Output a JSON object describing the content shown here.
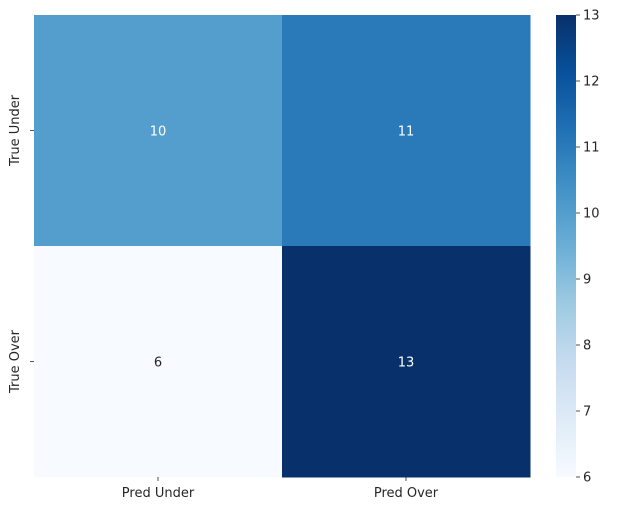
{
  "chart_data": {
    "type": "heatmap",
    "title": "",
    "xlabel": "",
    "ylabel": "",
    "x_categories": [
      "Pred Under",
      "Pred Over"
    ],
    "y_categories": [
      "True Under",
      "True Over"
    ],
    "values": [
      [
        10,
        11
      ],
      [
        6,
        13
      ]
    ],
    "annotations": true,
    "colormap": "Blues",
    "colorbar": {
      "range": [
        6,
        13
      ],
      "ticks": [
        "6",
        "7",
        "8",
        "9",
        "10",
        "11",
        "12",
        "13"
      ]
    },
    "colors": {
      "low": "#f7fbff",
      "high": "#08306b"
    }
  }
}
